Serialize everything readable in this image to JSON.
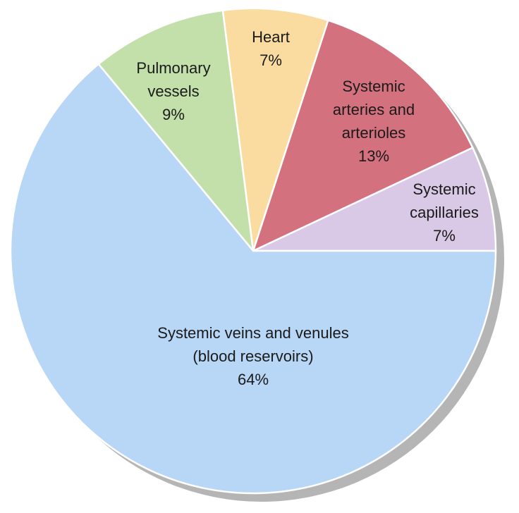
{
  "chart_data": {
    "type": "pie",
    "title": "",
    "slices": [
      {
        "label_lines": [
          "Systemic",
          "capillaries",
          "7%"
        ],
        "value": 7,
        "color": "#d9c9e6"
      },
      {
        "label_lines": [
          "Systemic",
          "arteries and",
          "arterioles",
          "13%"
        ],
        "value": 13,
        "color": "#d4717e"
      },
      {
        "label_lines": [
          "Heart",
          "7%"
        ],
        "value": 7,
        "color": "#fadca0"
      },
      {
        "label_lines": [
          "Pulmonary",
          "vessels",
          "9%"
        ],
        "value": 9,
        "color": "#c3e0ab"
      },
      {
        "label_lines": [
          "Systemic veins and venules",
          "(blood reservoirs)",
          "64%"
        ],
        "value": 64,
        "color": "#b8d6f5"
      }
    ],
    "shadow_color": "#b5b5b5"
  }
}
